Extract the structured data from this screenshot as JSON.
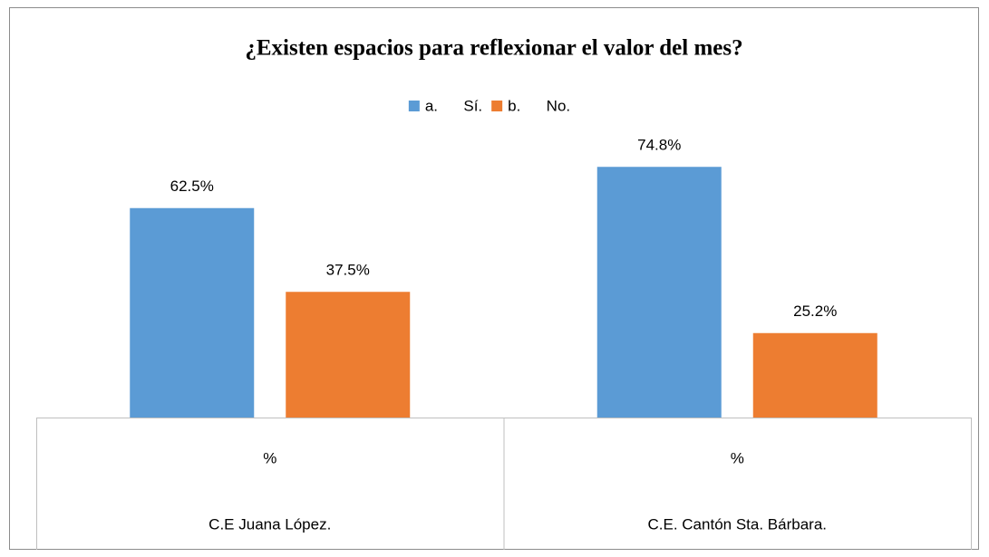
{
  "chart_data": {
    "type": "bar",
    "title": "¿Existen espacios para reflexionar el valor del mes?",
    "categories": [
      "C.E Juana López.",
      "C.E. Cantón Sta. Bárbara."
    ],
    "subcategories": [
      "%",
      "%"
    ],
    "series": [
      {
        "name": "a.      Sí.",
        "color": "#5b9bd5",
        "values": [
          62.5,
          74.8
        ],
        "value_labels": [
          "62.5%",
          "74.8%"
        ]
      },
      {
        "name": "b.      No.",
        "color": "#ed7d31",
        "values": [
          37.5,
          25.2
        ],
        "value_labels": [
          "37.5%",
          "25.2%"
        ]
      }
    ],
    "ylim": [
      0,
      80
    ],
    "legend": "top"
  }
}
